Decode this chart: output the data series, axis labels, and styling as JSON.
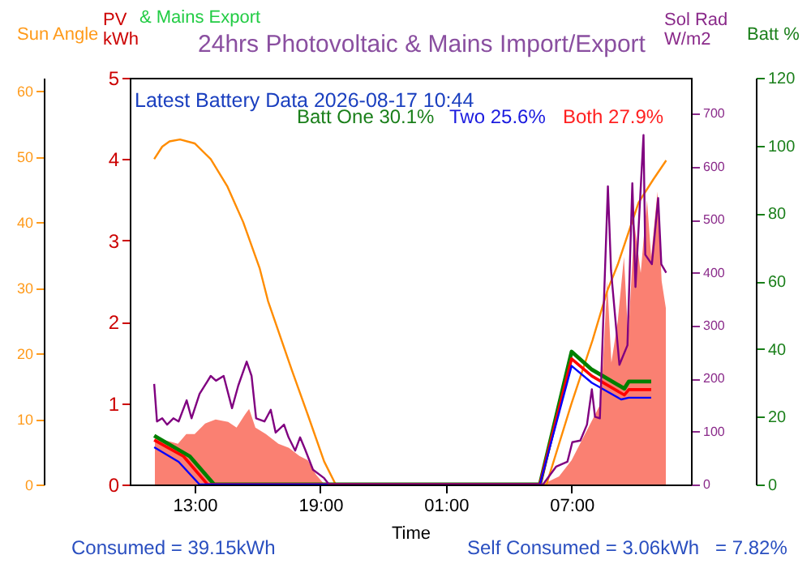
{
  "chart_data": [
    {
      "type": "line",
      "title": "24hrs Photovoltaic & Mains Import/Export",
      "xlabel": "Time",
      "ylabel": "PV kWh",
      "y2label": "Sun Angle",
      "y3label": "Batt %",
      "xlim": [
        "2026-08-16T09:54",
        "2026-08-17T12:42"
      ],
      "xticks": [
        {
          "value": "2026-08-16T13:00",
          "label": "13:00"
        },
        {
          "value": "2026-08-16T19:00",
          "label": "19:00"
        },
        {
          "value": "2026-08-17T01:00",
          "label": "01:00"
        },
        {
          "value": "2026-08-17T07:00",
          "label": "07:00"
        }
      ],
      "ylim": [
        0,
        5
      ],
      "yticks": [
        0,
        1,
        2,
        3,
        4,
        5
      ],
      "y2lim": [
        0,
        62
      ],
      "y2ticks": [
        0,
        10,
        20,
        30,
        40,
        50,
        60
      ],
      "y3lim": [
        0,
        120
      ],
      "y3ticks": [
        0,
        20,
        40,
        60,
        80,
        100,
        120
      ],
      "annotations": [
        "& Mains Export",
        "Latest Battery Data 2026-08-17 10:44",
        "Batt One 30.1%",
        "Two 25.6%",
        "Both 27.9%",
        "Consumed = 39.15kWh",
        "Self Consumed = 3.06kWh",
        "= 7.82%"
      ],
      "series": [
        {
          "type": "area",
          "color": "#fa8072",
          "x": [
            "2026-08-16T11:06",
            "2026-08-16T11:30",
            "2026-08-16T12:12",
            "2026-08-16T12:36",
            "2026-08-16T13:00",
            "2026-08-16T13:30",
            "2026-08-16T14:00",
            "2026-08-16T14:36",
            "2026-08-16T15:00",
            "2026-08-16T15:24",
            "2026-08-16T15:36",
            "2026-08-16T15:54",
            "2026-08-16T16:24",
            "2026-08-16T17:00",
            "2026-08-16T17:30",
            "2026-08-16T18:00",
            "2026-08-16T18:24",
            "2026-08-16T18:48",
            "2026-08-16T19:12",
            "2026-08-17T05:36",
            "2026-08-17T06:24",
            "2026-08-17T07:00",
            "2026-08-17T07:36",
            "2026-08-17T08:06",
            "2026-08-17T08:24",
            "2026-08-17T08:42",
            "2026-08-17T08:54",
            "2026-08-17T09:12",
            "2026-08-17T09:30",
            "2026-08-17T09:42",
            "2026-08-17T10:00",
            "2026-08-17T10:18",
            "2026-08-17T10:36",
            "2026-08-17T10:48",
            "2026-08-17T11:06",
            "2026-08-17T11:18",
            "2026-08-17T11:30"
          ],
          "values": [
            0.62,
            0.55,
            0.5,
            0.62,
            0.62,
            0.75,
            0.8,
            0.77,
            0.7,
            0.86,
            0.93,
            0.7,
            0.62,
            0.5,
            0.45,
            0.35,
            0.3,
            0.12,
            0,
            0,
            0.1,
            0.3,
            0.6,
            0.85,
            1.0,
            2.5,
            1.5,
            2.0,
            2.8,
            1.8,
            3.2,
            2.6,
            3.5,
            2.8,
            3.6,
            2.5,
            2.17
          ]
        },
        {
          "axis": "y2",
          "color": "#ff8c00",
          "x": [
            "2026-08-16T11:04",
            "2026-08-16T11:27",
            "2026-08-16T11:48",
            "2026-08-16T12:18",
            "2026-08-16T13:00",
            "2026-08-16T13:46",
            "2026-08-16T14:33",
            "2026-08-16T15:19",
            "2026-08-16T16:06",
            "2026-08-16T16:30",
            "2026-08-16T17:38",
            "2026-08-16T18:25",
            "2026-08-16T19:11",
            "2026-08-16T19:44",
            "2026-08-17T05:48",
            "2026-08-17T07:00",
            "2026-08-17T08:00",
            "2026-08-17T08:42",
            "2026-08-17T09:12",
            "2026-08-17T10:12",
            "2026-08-17T10:54",
            "2026-08-17T11:31"
          ],
          "values": [
            49.6,
            51.5,
            52.3,
            52.6,
            52.0,
            49.6,
            45.5,
            40,
            33,
            28,
            17.5,
            10.5,
            3.5,
            0,
            0,
            12.4,
            22,
            29.5,
            33.5,
            43,
            46.5,
            49.4
          ]
        },
        {
          "axis": "y3",
          "color": "#008000",
          "x": [
            "2026-08-16T11:04",
            "2026-08-16T12:46",
            "2026-08-16T13:56",
            "2026-08-17T05:29",
            "2026-08-17T07:00",
            "2026-08-17T07:58",
            "2026-08-17T09:31",
            "2026-08-17T09:44",
            "2026-08-17T10:48"
          ],
          "values": [
            14.4,
            8.3,
            0,
            0,
            39.2,
            33.9,
            28.3,
            30.4,
            30.4
          ]
        },
        {
          "axis": "y3",
          "color": "#ff0000",
          "x": [
            "2026-08-16T11:04",
            "2026-08-16T12:28",
            "2026-08-16T13:37",
            "2026-08-17T05:29",
            "2026-08-17T07:00",
            "2026-08-17T07:58",
            "2026-08-17T09:31",
            "2026-08-17T09:44",
            "2026-08-17T10:48"
          ],
          "values": [
            13.1,
            8.3,
            0,
            0,
            37.1,
            32,
            26.4,
            28,
            28
          ]
        },
        {
          "axis": "y3",
          "color": "#0000ff",
          "x": [
            "2026-08-16T11:04",
            "2026-08-16T12:14",
            "2026-08-16T13:14",
            "2026-08-17T05:29",
            "2026-08-17T07:00",
            "2026-08-17T07:58",
            "2026-08-17T09:22",
            "2026-08-17T09:44",
            "2026-08-17T10:48"
          ],
          "values": [
            11.0,
            6.7,
            0,
            0,
            35.0,
            30,
            25.1,
            25.6,
            25.6
          ]
        }
      ]
    },
    {
      "type": "line",
      "ylabel": "Sol Rad W/m2",
      "tick_labels": "y",
      "xlim": [
        "2026-08-16T09:54",
        "2026-08-17T12:42"
      ],
      "ylim": [
        0,
        768
      ],
      "yticks": [
        0,
        100,
        200,
        300,
        400,
        500,
        600,
        700
      ],
      "series": [
        {
          "color": "#800080",
          "x": [
            "2026-08-16T11:04",
            "2026-08-16T11:12",
            "2026-08-16T11:27",
            "2026-08-16T11:41",
            "2026-08-16T11:59",
            "2026-08-16T12:14",
            "2026-08-16T12:37",
            "2026-08-16T12:51",
            "2026-08-16T13:14",
            "2026-08-16T13:46",
            "2026-08-16T14:01",
            "2026-08-16T14:23",
            "2026-08-16T14:47",
            "2026-08-16T15:05",
            "2026-08-16T15:29",
            "2026-08-16T15:43",
            "2026-08-16T15:56",
            "2026-08-16T16:20",
            "2026-08-16T16:38",
            "2026-08-16T16:52",
            "2026-08-16T17:16",
            "2026-08-16T17:29",
            "2026-08-16T17:48",
            "2026-08-16T18:02",
            "2026-08-16T18:16",
            "2026-08-16T18:39",
            "2026-08-16T19:11",
            "2026-08-16T19:25",
            "2026-08-17T05:38",
            "2026-08-17T06:16",
            "2026-08-17T06:48",
            "2026-08-17T07:02",
            "2026-08-17T07:25",
            "2026-08-17T07:44",
            "2026-08-17T07:58",
            "2026-08-17T08:07",
            "2026-08-17T08:21",
            "2026-08-17T08:44",
            "2026-08-17T08:53",
            "2026-08-17T09:17",
            "2026-08-17T09:40",
            "2026-08-17T09:54",
            "2026-08-17T10:03",
            "2026-08-17T10:26",
            "2026-08-17T10:31",
            "2026-08-17T10:50",
            "2026-08-17T11:08",
            "2026-08-17T11:17",
            "2026-08-17T11:31"
          ],
          "values": [
            190,
            119,
            125,
            113,
            125,
            119,
            159,
            125,
            171,
            205,
            196,
            205,
            144,
            187,
            232,
            205,
            125,
            119,
            141,
            98,
            113,
            89,
            64,
            89,
            67,
            28,
            12,
            0,
            0,
            34,
            43,
            80,
            83,
            113,
            180,
            128,
            125,
            563,
            404,
            226,
            263,
            569,
            373,
            660,
            434,
            416,
            541,
            416,
            400
          ]
        }
      ]
    }
  ]
}
